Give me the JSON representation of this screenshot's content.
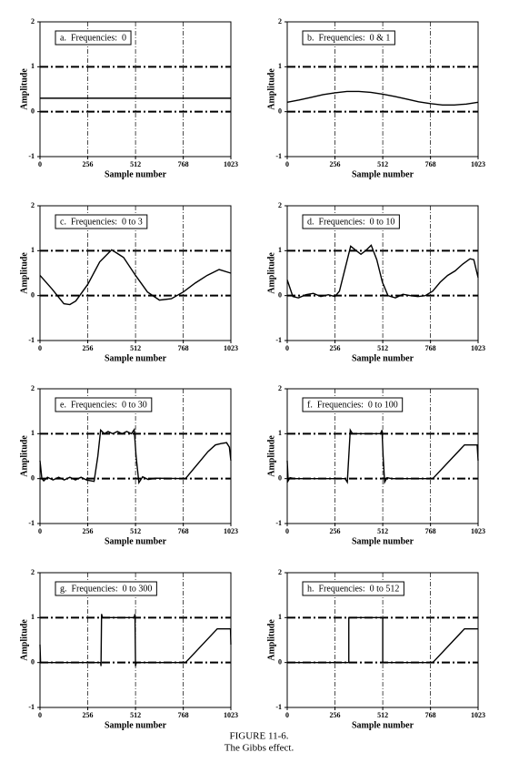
{
  "chart_data": [
    {
      "type": "line",
      "title": "a.  Frequencies:  0",
      "xlabel": "Sample number",
      "ylabel": "Amplitude",
      "xlim": [
        0,
        1023
      ],
      "ylim": [
        -1,
        2
      ],
      "xticks": [
        0,
        256,
        512,
        768,
        1023
      ],
      "yticks": [
        -1,
        0,
        1,
        2
      ],
      "grid": true,
      "color": "#000000",
      "x": [
        0,
        1023
      ],
      "values": [
        0.3,
        0.3
      ]
    },
    {
      "type": "line",
      "title": "b.  Frequencies:  0 & 1",
      "xlabel": "Sample number",
      "ylabel": "Amplitude",
      "xlim": [
        0,
        1023
      ],
      "ylim": [
        -1,
        2
      ],
      "xticks": [
        0,
        256,
        512,
        768,
        1023
      ],
      "yticks": [
        -1,
        0,
        1,
        2
      ],
      "grid": true,
      "color": "#000000",
      "x": [
        0,
        64,
        128,
        192,
        256,
        320,
        384,
        448,
        512,
        576,
        640,
        704,
        768,
        832,
        896,
        960,
        1023
      ],
      "values": [
        0.21,
        0.26,
        0.32,
        0.38,
        0.42,
        0.45,
        0.45,
        0.43,
        0.39,
        0.34,
        0.28,
        0.22,
        0.18,
        0.15,
        0.15,
        0.17,
        0.21
      ]
    },
    {
      "type": "line",
      "title": "c.  Frequencies:  0 to 3",
      "xlabel": "Sample number",
      "ylabel": "Amplitude",
      "xlim": [
        0,
        1023
      ],
      "ylim": [
        -1,
        2
      ],
      "xticks": [
        0,
        256,
        512,
        768,
        1023
      ],
      "yticks": [
        -1,
        0,
        1,
        2
      ],
      "grid": true,
      "color": "#000000",
      "x": [
        0,
        64,
        128,
        160,
        192,
        256,
        320,
        384,
        448,
        512,
        576,
        640,
        704,
        768,
        832,
        896,
        960,
        1023
      ],
      "values": [
        0.45,
        0.15,
        -0.18,
        -0.2,
        -0.12,
        0.25,
        0.75,
        1.02,
        0.85,
        0.45,
        0.08,
        -0.1,
        -0.07,
        0.08,
        0.28,
        0.45,
        0.58,
        0.5
      ]
    },
    {
      "type": "line",
      "title": "d.  Frequencies:  0 to 10",
      "xlabel": "Sample number",
      "ylabel": "Amplitude",
      "xlim": [
        0,
        1023
      ],
      "ylim": [
        -1,
        2
      ],
      "xticks": [
        0,
        256,
        512,
        768,
        1023
      ],
      "yticks": [
        -1,
        0,
        1,
        2
      ],
      "grid": true,
      "color": "#000000",
      "x": [
        0,
        30,
        60,
        100,
        140,
        180,
        220,
        256,
        280,
        310,
        340,
        370,
        395,
        420,
        450,
        480,
        510,
        540,
        580,
        620,
        660,
        700,
        740,
        780,
        820,
        860,
        900,
        940,
        980,
        1000,
        1023
      ],
      "values": [
        0.35,
        -0.02,
        -0.05,
        0.02,
        0.05,
        -0.02,
        0.02,
        -0.02,
        0.1,
        0.6,
        1.1,
        1.0,
        0.92,
        1.0,
        1.12,
        0.8,
        0.3,
        0.0,
        -0.05,
        0.03,
        0.0,
        -0.02,
        0.0,
        0.1,
        0.3,
        0.45,
        0.55,
        0.7,
        0.82,
        0.8,
        0.4
      ]
    },
    {
      "type": "line",
      "title": "e.  Frequencies:  0 to 30",
      "xlabel": "Sample number",
      "ylabel": "Amplitude",
      "xlim": [
        0,
        1023
      ],
      "ylim": [
        -1,
        2
      ],
      "xticks": [
        0,
        256,
        512,
        768,
        1023
      ],
      "yticks": [
        -1,
        0,
        1,
        2
      ],
      "grid": true,
      "color": "#000000",
      "x": [
        0,
        10,
        20,
        40,
        70,
        100,
        130,
        160,
        190,
        220,
        250,
        290,
        310,
        325,
        345,
        365,
        390,
        415,
        440,
        465,
        490,
        505,
        515,
        530,
        550,
        580,
        620,
        780,
        800,
        850,
        900,
        940,
        970,
        1000,
        1015,
        1023
      ],
      "values": [
        0.4,
        0.0,
        -0.05,
        0.03,
        -0.03,
        0.03,
        -0.03,
        0.03,
        -0.03,
        0.03,
        -0.03,
        -0.06,
        0.5,
        1.08,
        1.0,
        1.05,
        1.0,
        1.05,
        1.0,
        1.05,
        1.0,
        1.09,
        0.5,
        -0.09,
        0.04,
        -0.02,
        0.01,
        0.0,
        0.1,
        0.35,
        0.6,
        0.75,
        0.78,
        0.8,
        0.7,
        0.4
      ]
    },
    {
      "type": "line",
      "title": "f.  Frequencies:  0 to 100",
      "xlabel": "Sample number",
      "ylabel": "Amplitude",
      "xlim": [
        0,
        1023
      ],
      "ylim": [
        -1,
        2
      ],
      "xticks": [
        0,
        256,
        512,
        768,
        1023
      ],
      "yticks": [
        -1,
        0,
        1,
        2
      ],
      "grid": true,
      "color": "#000000",
      "x": [
        0,
        5,
        15,
        40,
        310,
        322,
        330,
        338,
        350,
        500,
        508,
        514,
        522,
        535,
        560,
        780,
        950,
        1018,
        1023
      ],
      "values": [
        0.4,
        -0.05,
        0.02,
        0.0,
        0.0,
        -0.08,
        0.5,
        1.08,
        1.0,
        1.0,
        1.08,
        0.5,
        -0.08,
        0.02,
        0.0,
        0.0,
        0.75,
        0.75,
        0.4
      ]
    },
    {
      "type": "line",
      "title": "g.  Frequencies:  0 to 300",
      "xlabel": "Sample number",
      "ylabel": "Amplitude",
      "xlim": [
        0,
        1023
      ],
      "ylim": [
        -1,
        2
      ],
      "xticks": [
        0,
        256,
        512,
        768,
        1023
      ],
      "yticks": [
        -1,
        0,
        1,
        2
      ],
      "grid": true,
      "color": "#000000",
      "x": [
        0,
        3,
        325,
        327,
        330,
        335,
        505,
        509,
        512,
        516,
        780,
        950,
        1021,
        1023
      ],
      "values": [
        0.4,
        0.0,
        0.0,
        -0.08,
        1.08,
        1.0,
        1.0,
        1.08,
        -0.08,
        0.0,
        0.0,
        0.75,
        0.75,
        0.4
      ]
    },
    {
      "type": "line",
      "title": "h.  Frequencies:  0 to 512",
      "xlabel": "Sample number",
      "ylabel": "Amplitude",
      "xlim": [
        0,
        1023
      ],
      "ylim": [
        -1,
        2
      ],
      "xticks": [
        0,
        256,
        512,
        768,
        1023
      ],
      "yticks": [
        -1,
        0,
        1,
        2
      ],
      "grid": true,
      "color": "#000000",
      "x": [
        0,
        330,
        330,
        512,
        512,
        780,
        950,
        1023
      ],
      "values": [
        0.0,
        0.0,
        1.0,
        1.0,
        0.0,
        0.0,
        0.75,
        0.75
      ]
    }
  ],
  "caption": {
    "figure": "FIGURE 11-6.",
    "text": "The Gibbs effect."
  }
}
